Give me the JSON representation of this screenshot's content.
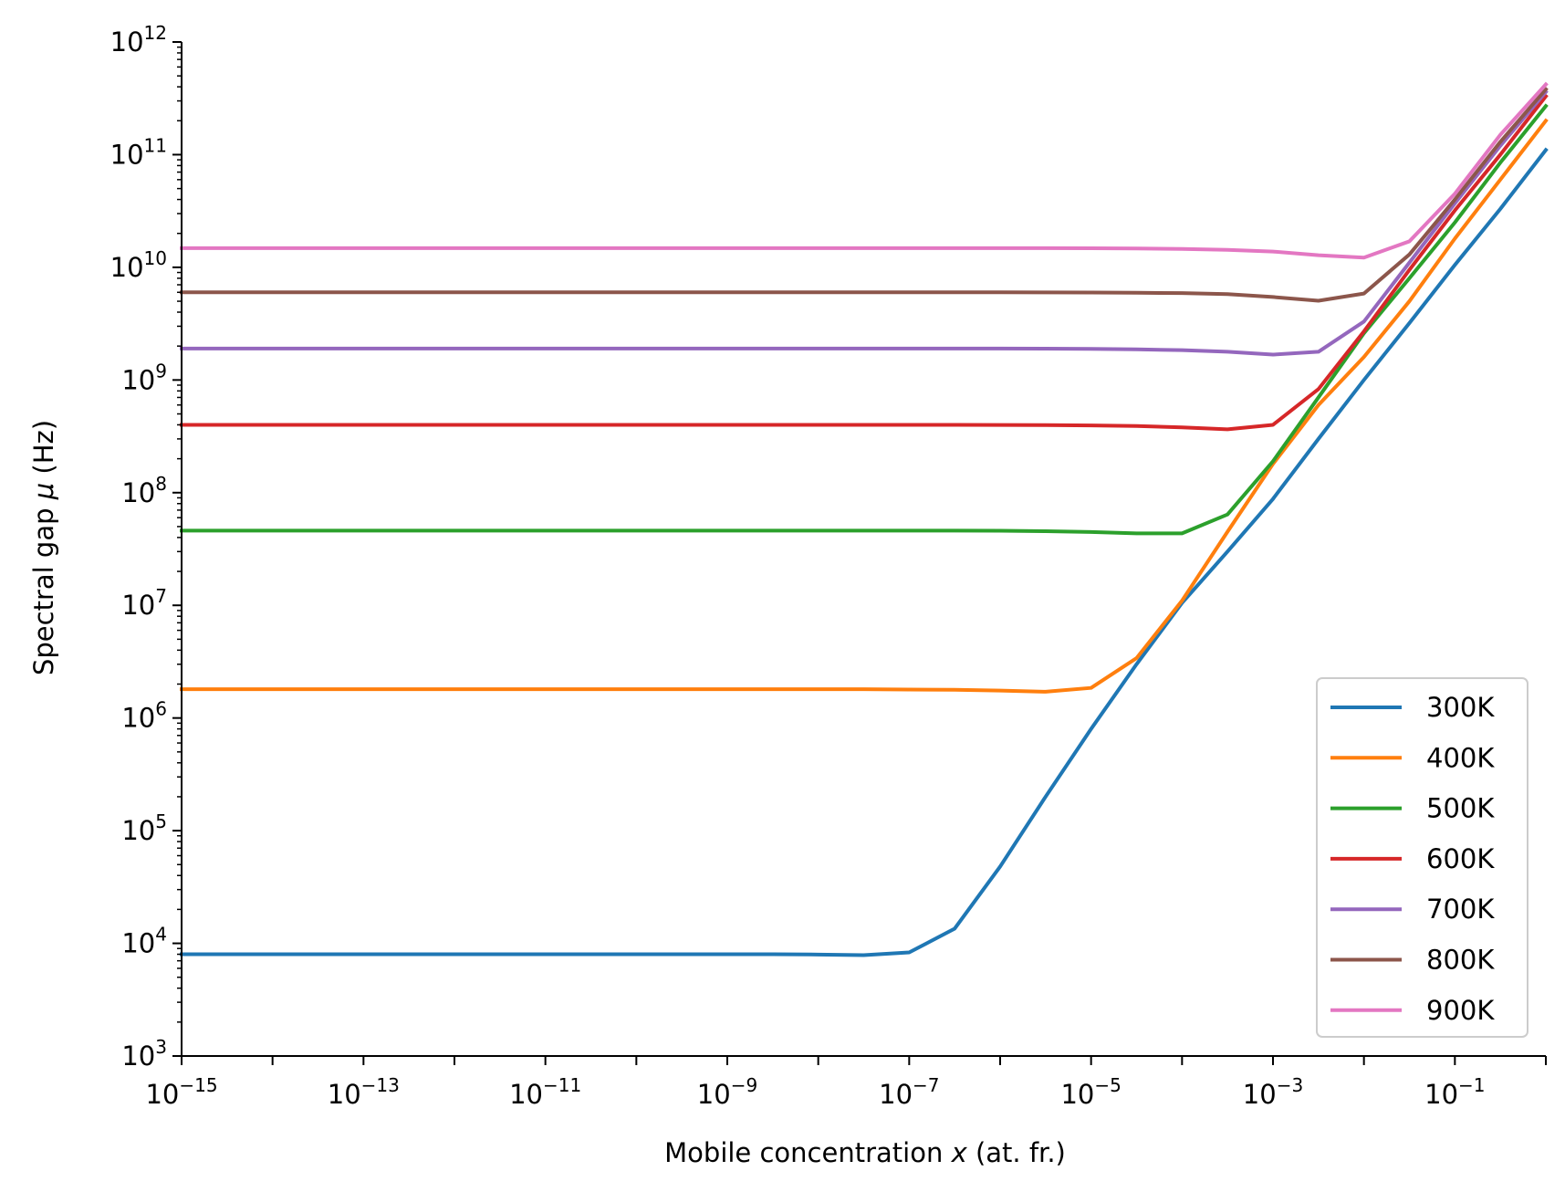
{
  "chart_data": {
    "type": "line",
    "xlabel": {
      "prefix": "Mobile concentration ",
      "var": "x",
      "suffix": " (at. fr.)"
    },
    "ylabel": {
      "prefix": "Spectral gap ",
      "var": "μ",
      "suffix": " (Hz)"
    },
    "xscale": "log",
    "yscale": "log",
    "xlim": [
      1e-15,
      1
    ],
    "ylim": [
      1000,
      1000000000000
    ],
    "x_ticks": [
      {
        "value": 1e-15,
        "base": "10",
        "exp": "−15"
      },
      {
        "value": 1e-13,
        "base": "10",
        "exp": "−13"
      },
      {
        "value": 1e-11,
        "base": "10",
        "exp": "−11"
      },
      {
        "value": 1e-09,
        "base": "10",
        "exp": "−9"
      },
      {
        "value": 1e-07,
        "base": "10",
        "exp": "−7"
      },
      {
        "value": 1e-05,
        "base": "10",
        "exp": "−5"
      },
      {
        "value": 0.001,
        "base": "10",
        "exp": "−3"
      },
      {
        "value": 0.1,
        "base": "10",
        "exp": "−1"
      }
    ],
    "y_ticks": [
      {
        "value": 1000.0,
        "base": "10",
        "exp": "3"
      },
      {
        "value": 10000.0,
        "base": "10",
        "exp": "4"
      },
      {
        "value": 100000.0,
        "base": "10",
        "exp": "5"
      },
      {
        "value": 1000000.0,
        "base": "10",
        "exp": "6"
      },
      {
        "value": 10000000.0,
        "base": "10",
        "exp": "7"
      },
      {
        "value": 100000000.0,
        "base": "10",
        "exp": "8"
      },
      {
        "value": 1000000000.0,
        "base": "10",
        "exp": "9"
      },
      {
        "value": 10000000000.0,
        "base": "10",
        "exp": "10"
      },
      {
        "value": 100000000000.0,
        "base": "10",
        "exp": "11"
      },
      {
        "value": 1000000000000.0,
        "base": "10",
        "exp": "12"
      }
    ],
    "grid": false,
    "legend_position": "lower-right",
    "x": [
      1e-15,
      3.16e-15,
      1e-14,
      3.16e-14,
      1e-13,
      3.16e-13,
      1e-12,
      3.16e-12,
      1e-11,
      3.16e-11,
      1e-10,
      3.16e-10,
      1e-09,
      3.16e-09,
      1e-08,
      3.16e-08,
      1e-07,
      3.16e-07,
      1e-06,
      3.16e-06,
      1e-05,
      3.16e-05,
      0.0001,
      0.000316,
      0.001,
      0.00316,
      0.01,
      0.0316,
      0.1,
      0.316,
      1
    ],
    "series": [
      {
        "name": "300K",
        "color": "#1f77b4",
        "values": [
          8000,
          8000,
          8000,
          8000,
          8000,
          8000,
          8000,
          8000,
          8000,
          8000,
          8000,
          8000,
          8000,
          8000,
          7950,
          7850,
          8300,
          13500,
          48000,
          200000,
          800000,
          3000000,
          10500000,
          30000000,
          88000000,
          300000000,
          1000000000,
          3200000000,
          10500000000,
          33000000000,
          110000000000
        ]
      },
      {
        "name": "400K",
        "color": "#ff7f0e",
        "values": [
          1800000,
          1800000,
          1800000,
          1800000,
          1800000,
          1800000,
          1800000,
          1800000,
          1800000,
          1800000,
          1800000,
          1800000,
          1800000,
          1800000,
          1800000,
          1800000,
          1790000,
          1780000,
          1750000,
          1710000,
          1850000,
          3400000,
          11000000,
          45000000,
          180000000,
          600000000,
          1600000000,
          5000000000,
          18000000000,
          60000000000,
          200000000000
        ]
      },
      {
        "name": "500K",
        "color": "#2ca02c",
        "values": [
          46000000,
          46000000,
          46000000,
          46000000,
          46000000,
          46000000,
          46000000,
          46000000,
          46000000,
          46000000,
          46000000,
          46000000,
          46000000,
          46000000,
          46000000,
          46000000,
          46000000,
          46000000,
          45900000,
          45500000,
          44800000,
          43500000,
          43500000,
          64000000,
          190000000,
          700000000,
          2600000000,
          8000000000,
          25000000000,
          85000000000,
          270000000000
        ]
      },
      {
        "name": "600K",
        "color": "#d62728",
        "values": [
          400000000,
          400000000,
          400000000,
          400000000,
          400000000,
          400000000,
          400000000,
          400000000,
          400000000,
          400000000,
          400000000,
          400000000,
          400000000,
          400000000,
          400000000,
          400000000,
          400000000,
          400000000,
          399000000,
          398000000,
          395000000,
          390000000,
          380000000,
          365000000,
          400000000,
          830000000,
          2700000000,
          9500000000,
          32000000000,
          100000000000,
          330000000000
        ]
      },
      {
        "name": "700K",
        "color": "#9467bd",
        "values": [
          1900000000,
          1900000000,
          1900000000,
          1900000000,
          1900000000,
          1900000000,
          1900000000,
          1900000000,
          1900000000,
          1900000000,
          1900000000,
          1900000000,
          1900000000,
          1900000000,
          1900000000,
          1900000000,
          1900000000,
          1900000000,
          1900000000,
          1895000000,
          1890000000,
          1870000000,
          1840000000,
          1780000000,
          1680000000,
          1780000000,
          3300000000,
          11000000000,
          37000000000,
          120000000000,
          360000000000
        ]
      },
      {
        "name": "800K",
        "color": "#8c564b",
        "values": [
          6000000000,
          6000000000,
          6000000000,
          6000000000,
          6000000000,
          6000000000,
          6000000000,
          6000000000,
          6000000000,
          6000000000,
          6000000000,
          6000000000,
          6000000000,
          6000000000,
          6000000000,
          6000000000,
          6000000000,
          6000000000,
          6000000000,
          5990000000,
          5980000000,
          5950000000,
          5900000000,
          5780000000,
          5450000000,
          5050000000,
          5850000000,
          13000000000,
          40000000000,
          130000000000,
          380000000000
        ]
      },
      {
        "name": "900K",
        "color": "#e377c2",
        "values": [
          14800000000,
          14800000000,
          14800000000,
          14800000000,
          14800000000,
          14800000000,
          14800000000,
          14800000000,
          14800000000,
          14800000000,
          14800000000,
          14800000000,
          14800000000,
          14800000000,
          14800000000,
          14800000000,
          14800000000,
          14800000000,
          14800000000,
          14790000000,
          14750000000,
          14700000000,
          14550000000,
          14300000000,
          13800000000,
          12800000000,
          12200000000,
          17000000000,
          45000000000,
          150000000000,
          420000000000
        ]
      }
    ]
  }
}
